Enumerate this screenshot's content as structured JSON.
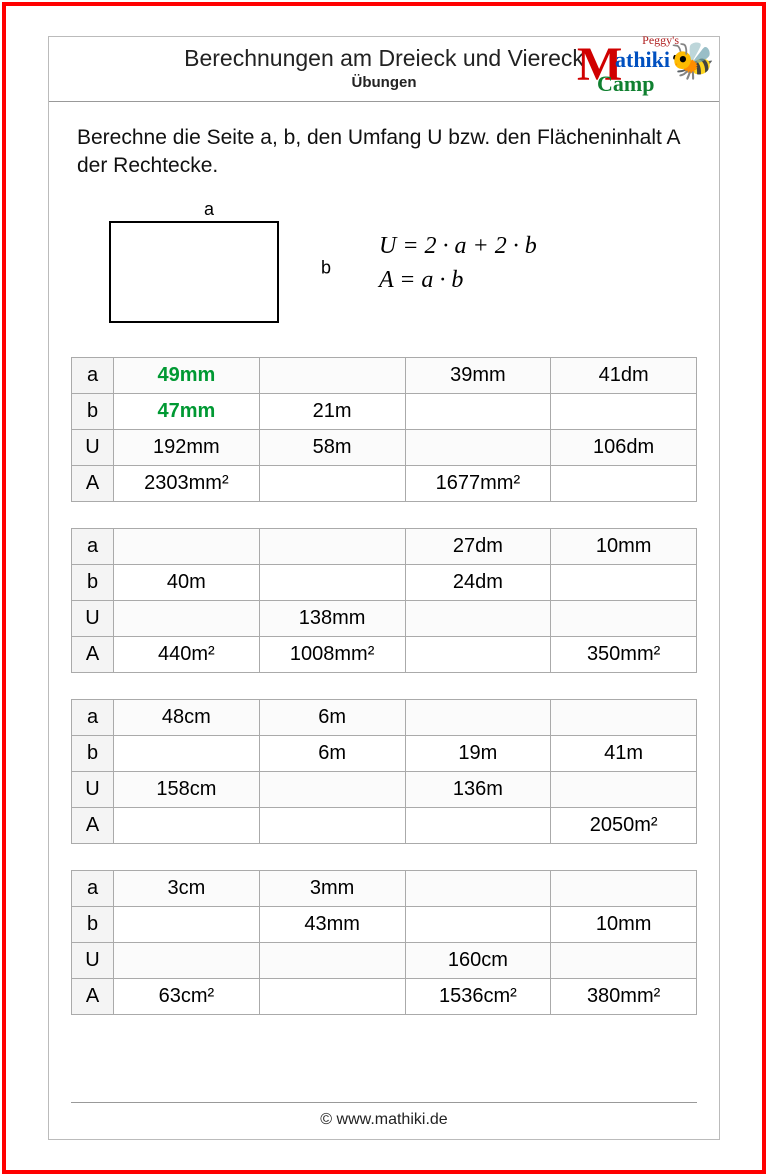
{
  "colors": {
    "frame": "#ff0000",
    "page_border": "#bbbbbb",
    "cell_border": "#aaaaaa",
    "header_cell_bg": "#f4f4f4",
    "green_text": "#009933",
    "text": "#111111"
  },
  "header": {
    "title": "Berechnungen am Dreieck und Viereck",
    "subtitle": "Übungen",
    "logo": {
      "peggy": "Peggy's",
      "m": "M",
      "athiki": "athiki",
      "camp": "Camp",
      "bee_glyph": "🐝"
    }
  },
  "instruction": "Berechne die Seite a, b, den Umfang U bzw. den Flächeninhalt A der Rechtecke.",
  "diagram": {
    "label_a": "a",
    "label_b": "b",
    "rect_border_color": "#000000"
  },
  "formulas": {
    "u": "U = 2 · a + 2 · b",
    "a": "A = a · b"
  },
  "row_labels": [
    "a",
    "b",
    "U",
    "A"
  ],
  "tables": [
    {
      "rows": [
        [
          "49mm",
          "",
          "39mm",
          "41dm"
        ],
        [
          "47mm",
          "21m",
          "",
          ""
        ],
        [
          "192mm",
          "58m",
          "",
          "106dm"
        ],
        [
          "2303mm²",
          "",
          "1677mm²",
          ""
        ]
      ],
      "green_cells": [
        [
          0,
          0
        ],
        [
          1,
          0
        ]
      ]
    },
    {
      "rows": [
        [
          "",
          "",
          "27dm",
          "10mm"
        ],
        [
          "40m",
          "",
          "24dm",
          ""
        ],
        [
          "",
          "138mm",
          "",
          ""
        ],
        [
          "440m²",
          "1008mm²",
          "",
          "350mm²"
        ]
      ],
      "green_cells": []
    },
    {
      "rows": [
        [
          "48cm",
          "6m",
          "",
          ""
        ],
        [
          "",
          "6m",
          "19m",
          "41m"
        ],
        [
          "158cm",
          "",
          "136m",
          ""
        ],
        [
          "",
          "",
          "",
          "2050m²"
        ]
      ],
      "green_cells": []
    },
    {
      "rows": [
        [
          "3cm",
          "3mm",
          "",
          ""
        ],
        [
          "",
          "43mm",
          "",
          "10mm"
        ],
        [
          "",
          "",
          "160cm",
          ""
        ],
        [
          "63cm²",
          "",
          "1536cm²",
          "380mm²"
        ]
      ],
      "green_cells": []
    }
  ],
  "footer": {
    "text": "© www.mathiki.de"
  }
}
